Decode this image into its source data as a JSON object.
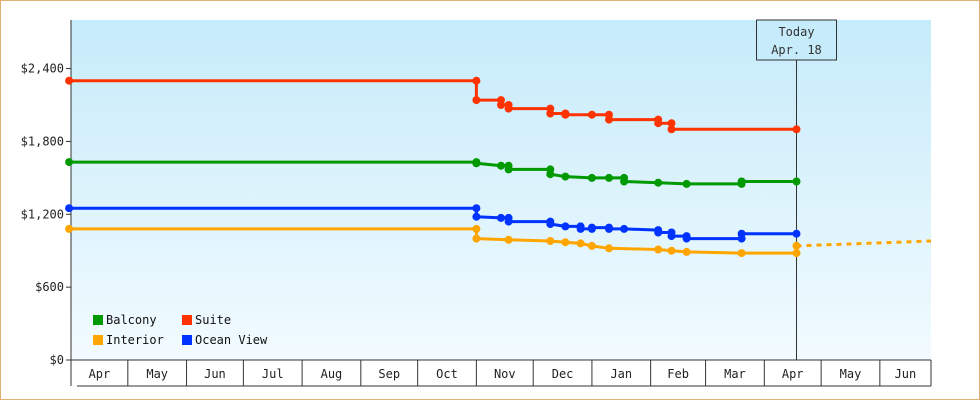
{
  "chart_data": {
    "type": "line",
    "y_unit": "USD",
    "ylim": [
      0,
      2800
    ],
    "y_ticks": [
      0,
      600,
      1200,
      1800,
      2400
    ],
    "y_tick_labels": [
      "$0",
      "$600",
      "$1,200",
      "$1,800",
      "$2,400"
    ],
    "x_month_labels": [
      "Apr",
      "May",
      "Jun",
      "Jul",
      "Aug",
      "Sep",
      "Oct",
      "Nov",
      "Dec",
      "Jan",
      "Feb",
      "Mar",
      "Apr",
      "May",
      "Jun"
    ],
    "x_range": [
      "2023-04-01",
      "2024-06-28"
    ],
    "grid": false,
    "legend_position": "bottom-left",
    "today_marker": {
      "line1": "Today",
      "line2": "Apr. 18",
      "date": "2024-04-18"
    },
    "series": [
      {
        "name": "Suite",
        "color": "#ff3300",
        "points": [
          [
            "2023-03-31",
            2300
          ],
          [
            "2023-11-01",
            2300
          ],
          [
            "2023-11-01",
            2140
          ],
          [
            "2023-11-14",
            2140
          ],
          [
            "2023-11-14",
            2100
          ],
          [
            "2023-11-18",
            2100
          ],
          [
            "2023-11-18",
            2070
          ],
          [
            "2023-12-10",
            2070
          ],
          [
            "2023-12-10",
            2030
          ],
          [
            "2023-12-18",
            2030
          ],
          [
            "2023-12-18",
            2020
          ],
          [
            "2024-01-01",
            2020
          ],
          [
            "2024-01-10",
            2020
          ],
          [
            "2024-01-10",
            1980
          ],
          [
            "2024-02-05",
            1980
          ],
          [
            "2024-02-05",
            1950
          ],
          [
            "2024-02-12",
            1950
          ],
          [
            "2024-02-12",
            1900
          ],
          [
            "2024-04-18",
            1900
          ]
        ]
      },
      {
        "name": "Balcony",
        "color": "#009900",
        "points": [
          [
            "2023-03-31",
            1630
          ],
          [
            "2023-11-01",
            1630
          ],
          [
            "2023-11-01",
            1620
          ],
          [
            "2023-11-14",
            1600
          ],
          [
            "2023-11-18",
            1600
          ],
          [
            "2023-11-18",
            1570
          ],
          [
            "2023-12-10",
            1570
          ],
          [
            "2023-12-10",
            1530
          ],
          [
            "2023-12-18",
            1510
          ],
          [
            "2024-01-01",
            1500
          ],
          [
            "2024-01-10",
            1500
          ],
          [
            "2024-01-18",
            1500
          ],
          [
            "2024-01-18",
            1470
          ],
          [
            "2024-02-05",
            1460
          ],
          [
            "2024-02-20",
            1450
          ],
          [
            "2024-03-20",
            1450
          ],
          [
            "2024-03-20",
            1470
          ],
          [
            "2024-04-18",
            1470
          ]
        ]
      },
      {
        "name": "Ocean View",
        "color": "#0033ff",
        "points": [
          [
            "2023-03-31",
            1250
          ],
          [
            "2023-11-01",
            1250
          ],
          [
            "2023-11-01",
            1180
          ],
          [
            "2023-11-14",
            1170
          ],
          [
            "2023-11-18",
            1170
          ],
          [
            "2023-11-18",
            1140
          ],
          [
            "2023-12-10",
            1140
          ],
          [
            "2023-12-10",
            1120
          ],
          [
            "2023-12-18",
            1100
          ],
          [
            "2023-12-26",
            1100
          ],
          [
            "2023-12-26",
            1080
          ],
          [
            "2024-01-01",
            1080
          ],
          [
            "2024-01-01",
            1090
          ],
          [
            "2024-01-10",
            1090
          ],
          [
            "2024-01-10",
            1080
          ],
          [
            "2024-01-18",
            1080
          ],
          [
            "2024-02-05",
            1070
          ],
          [
            "2024-02-05",
            1050
          ],
          [
            "2024-02-12",
            1050
          ],
          [
            "2024-02-12",
            1020
          ],
          [
            "2024-02-20",
            1020
          ],
          [
            "2024-02-20",
            1000
          ],
          [
            "2024-03-20",
            1000
          ],
          [
            "2024-03-20",
            1040
          ],
          [
            "2024-04-18",
            1040
          ]
        ]
      },
      {
        "name": "Interior",
        "color": "#ffa500",
        "points": [
          [
            "2023-03-31",
            1080
          ],
          [
            "2023-11-01",
            1080
          ],
          [
            "2023-11-01",
            1000
          ],
          [
            "2023-11-18",
            990
          ],
          [
            "2023-12-10",
            980
          ],
          [
            "2023-12-18",
            970
          ],
          [
            "2023-12-26",
            960
          ],
          [
            "2024-01-01",
            940
          ],
          [
            "2024-01-10",
            920
          ],
          [
            "2024-02-05",
            910
          ],
          [
            "2024-02-12",
            900
          ],
          [
            "2024-02-20",
            890
          ],
          [
            "2024-03-20",
            880
          ],
          [
            "2024-04-18",
            880
          ],
          [
            "2024-04-18",
            940
          ]
        ],
        "projection": [
          [
            "2024-04-18",
            940
          ],
          [
            "2024-06-28",
            980
          ]
        ]
      }
    ],
    "legend": [
      {
        "name": "Balcony",
        "color": "#009900"
      },
      {
        "name": "Suite",
        "color": "#ff3300"
      },
      {
        "name": "Interior",
        "color": "#ffa500"
      },
      {
        "name": "Ocean View",
        "color": "#0033ff"
      }
    ]
  }
}
